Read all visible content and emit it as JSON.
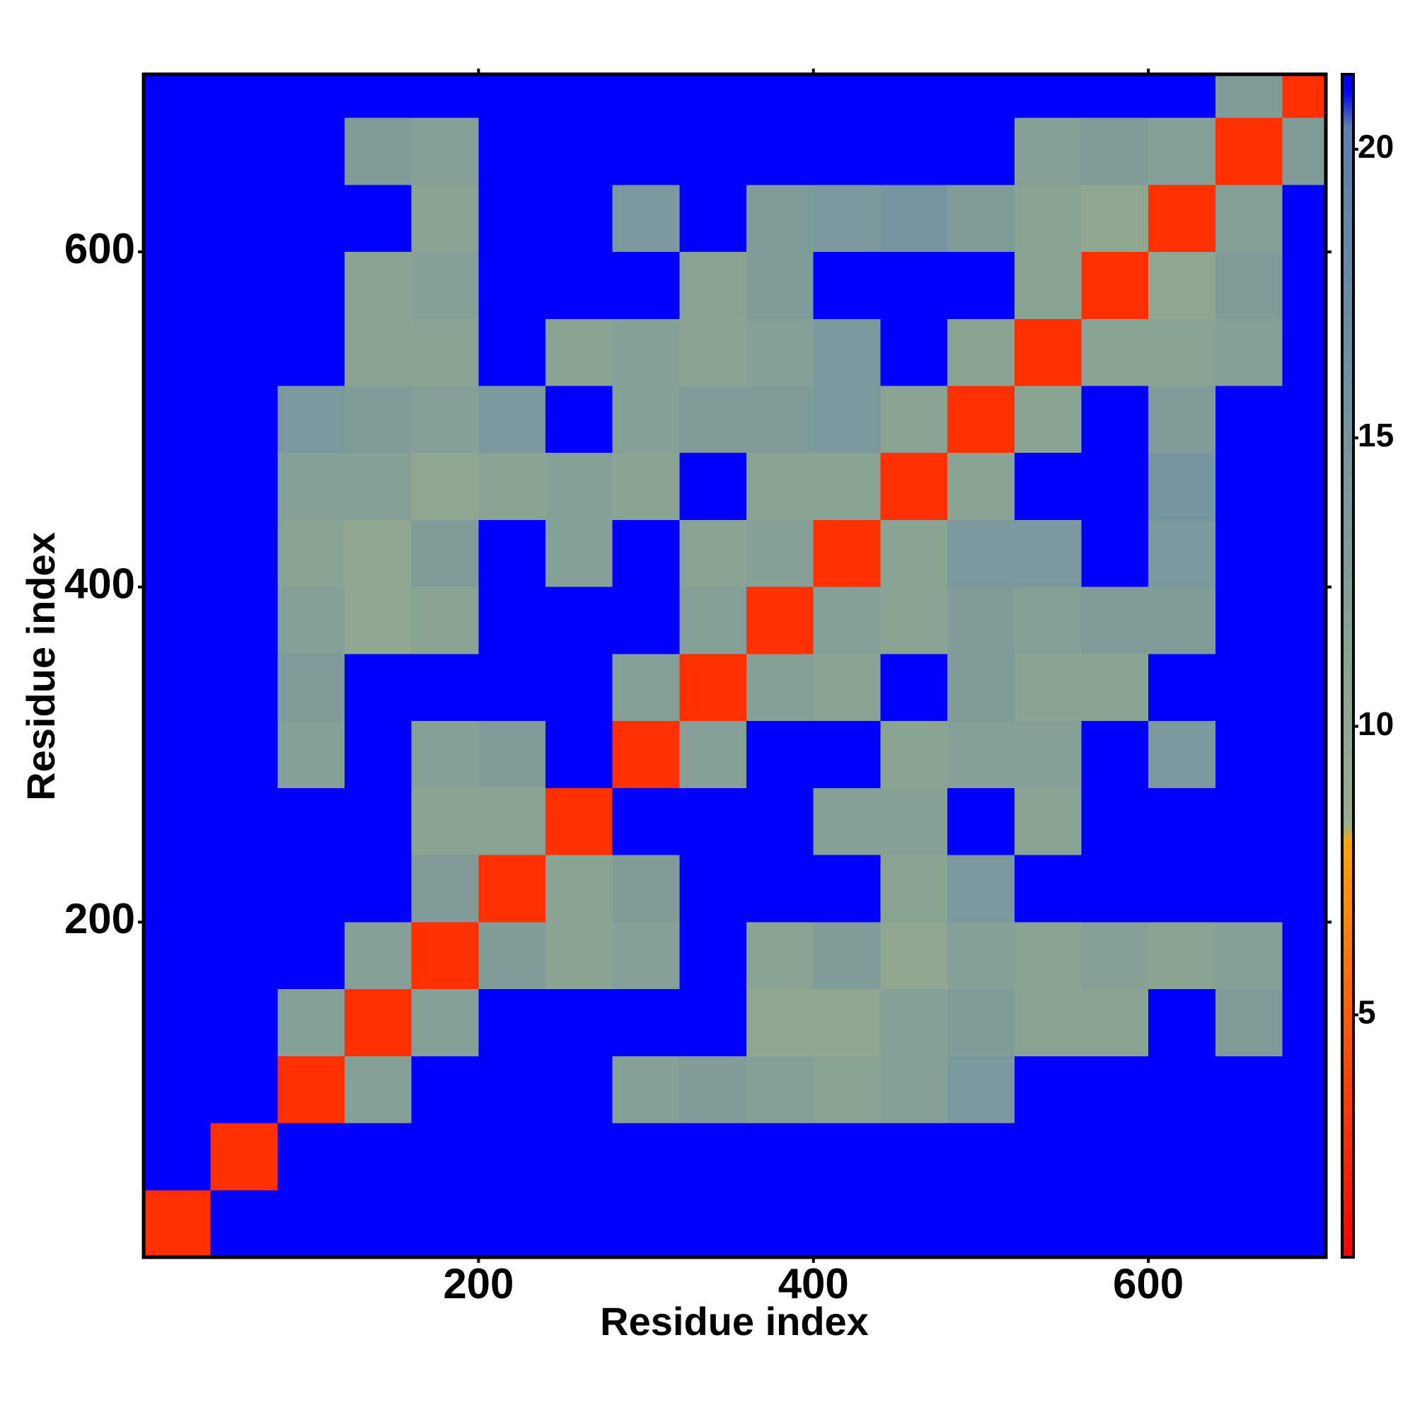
{
  "chart_data": {
    "type": "heatmap",
    "x_label": "Residue index",
    "y_label": "Residue index",
    "xlim": [
      0,
      706
    ],
    "ylim": [
      0,
      706
    ],
    "xticks": [
      200,
      400,
      600
    ],
    "yticks": [
      200,
      400,
      600
    ],
    "x_bins": [
      0,
      40,
      80,
      120,
      160,
      200,
      240,
      280,
      320,
      360,
      400,
      440,
      480,
      520,
      560,
      600,
      640,
      680,
      706
    ],
    "y_bins": [
      0,
      40,
      80,
      120,
      160,
      200,
      240,
      280,
      320,
      360,
      400,
      440,
      480,
      520,
      560,
      600,
      640,
      680,
      706
    ],
    "values": [
      [
        3,
        21,
        21,
        21,
        21,
        21,
        21,
        21,
        21,
        21,
        21,
        21,
        21,
        21,
        21,
        21,
        21,
        21
      ],
      [
        21,
        3,
        21,
        21,
        21,
        21,
        21,
        21,
        21,
        21,
        21,
        21,
        21,
        21,
        21,
        21,
        21,
        21
      ],
      [
        21,
        21,
        3,
        12,
        21,
        21,
        21,
        12,
        13,
        12,
        11,
        12,
        14,
        21,
        21,
        21,
        21,
        21
      ],
      [
        21,
        21,
        12,
        3,
        12,
        21,
        21,
        21,
        21,
        10,
        10,
        12,
        13,
        11,
        11,
        21,
        13,
        21
      ],
      [
        21,
        21,
        21,
        12,
        3,
        13,
        11,
        12,
        21,
        11,
        13,
        10,
        12,
        11,
        12,
        11,
        12,
        21
      ],
      [
        21,
        21,
        21,
        21,
        13,
        3,
        11,
        13,
        21,
        21,
        21,
        11,
        14,
        21,
        21,
        21,
        21,
        21
      ],
      [
        21,
        21,
        21,
        21,
        11,
        11,
        3,
        21,
        21,
        21,
        12,
        12,
        21,
        11,
        21,
        21,
        21,
        21
      ],
      [
        21,
        21,
        12,
        21,
        12,
        13,
        21,
        3,
        12,
        21,
        21,
        11,
        12,
        12,
        21,
        14,
        21,
        21
      ],
      [
        21,
        21,
        13,
        21,
        21,
        21,
        21,
        12,
        3,
        12,
        11,
        21,
        13,
        11,
        11,
        21,
        21,
        21
      ],
      [
        21,
        21,
        12,
        10,
        11,
        21,
        21,
        21,
        12,
        3,
        12,
        11,
        13,
        12,
        13,
        13,
        21,
        21
      ],
      [
        21,
        21,
        11,
        10,
        13,
        21,
        12,
        21,
        11,
        12,
        3,
        11,
        14,
        14,
        21,
        14,
        21,
        21
      ],
      [
        21,
        21,
        12,
        12,
        10,
        11,
        12,
        11,
        21,
        11,
        11,
        3,
        11,
        21,
        21,
        15,
        21,
        21
      ],
      [
        21,
        21,
        14,
        13,
        12,
        14,
        21,
        12,
        13,
        13,
        14,
        11,
        3,
        11,
        21,
        13,
        21,
        21
      ],
      [
        21,
        21,
        21,
        11,
        11,
        21,
        11,
        12,
        11,
        12,
        14,
        21,
        11,
        3,
        11,
        11,
        12,
        21
      ],
      [
        21,
        21,
        21,
        11,
        12,
        21,
        21,
        21,
        11,
        13,
        21,
        21,
        21,
        11,
        3,
        10,
        13,
        21
      ],
      [
        21,
        21,
        21,
        21,
        11,
        21,
        21,
        14,
        21,
        13,
        14,
        15,
        13,
        11,
        10,
        3,
        12,
        21
      ],
      [
        21,
        21,
        21,
        13,
        12,
        21,
        21,
        21,
        21,
        21,
        21,
        21,
        21,
        12,
        13,
        12,
        3,
        13
      ],
      [
        21,
        21,
        21,
        21,
        21,
        21,
        21,
        21,
        21,
        21,
        21,
        21,
        21,
        21,
        21,
        21,
        13,
        3
      ]
    ],
    "zlim": [
      0.8,
      21.3
    ],
    "zticks": [
      5,
      10,
      15,
      20
    ],
    "colorscale": [
      [
        0.8,
        "#ff0000"
      ],
      [
        4,
        "#ff4500"
      ],
      [
        8,
        "#ffa500"
      ],
      [
        8.3,
        "#98ae8c"
      ],
      [
        20.4,
        "#5a7fae"
      ],
      [
        21,
        "#0000ff"
      ],
      [
        21.3,
        "#0000ff"
      ]
    ]
  }
}
